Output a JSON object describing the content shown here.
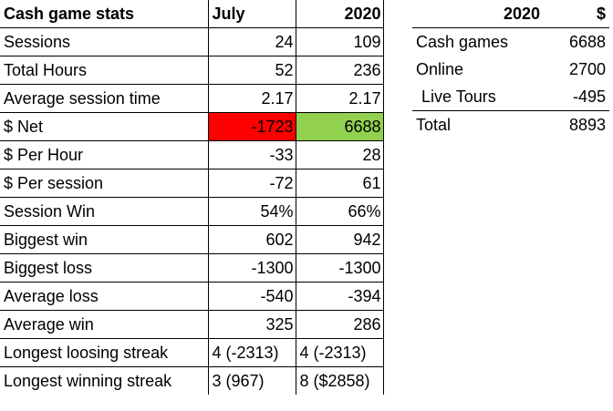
{
  "main_table": {
    "header": {
      "label": "Cash game stats",
      "col1": "July",
      "col2": "2020"
    },
    "rows": [
      {
        "label": "Sessions",
        "col1": "24",
        "col2": "109"
      },
      {
        "label": "Total Hours",
        "col1": "52",
        "col2": "236"
      },
      {
        "label": "Average session time",
        "col1": "2.17",
        "col2": "2.17"
      },
      {
        "label": "$ Net",
        "col1": "-1723",
        "col2": "6688"
      },
      {
        "label": "$ Per Hour",
        "col1": "-33",
        "col2": "28"
      },
      {
        "label": "$ Per session",
        "col1": "-72",
        "col2": "61"
      },
      {
        "label": "Session Win",
        "col1": "54%",
        "col2": "66%"
      },
      {
        "label": "Biggest win",
        "col1": "602",
        "col2": "942"
      },
      {
        "label": "Biggest loss",
        "col1": "-1300",
        "col2": "-1300"
      },
      {
        "label": "Average loss",
        "col1": "-540",
        "col2": "-394"
      },
      {
        "label": "Average win",
        "col1": "325",
        "col2": "286"
      },
      {
        "label": "Longest loosing streak",
        "col1": "4 (-2313)",
        "col2": "4 (-2313)"
      },
      {
        "label": "Longest winning streak",
        "col1": "3 (967)",
        "col2": "8 ($2858)"
      }
    ],
    "net_negative_color": "#ff0000",
    "net_positive_color": "#92d050"
  },
  "side_table": {
    "header": {
      "label": "2020",
      "value": "$"
    },
    "rows": [
      {
        "label": "Cash games",
        "value": "6688"
      },
      {
        "label": "Online",
        "value": "2700"
      },
      {
        "label": "Live Tours",
        "value": "-495"
      }
    ],
    "total": {
      "label": "Total",
      "value": "8893"
    }
  }
}
